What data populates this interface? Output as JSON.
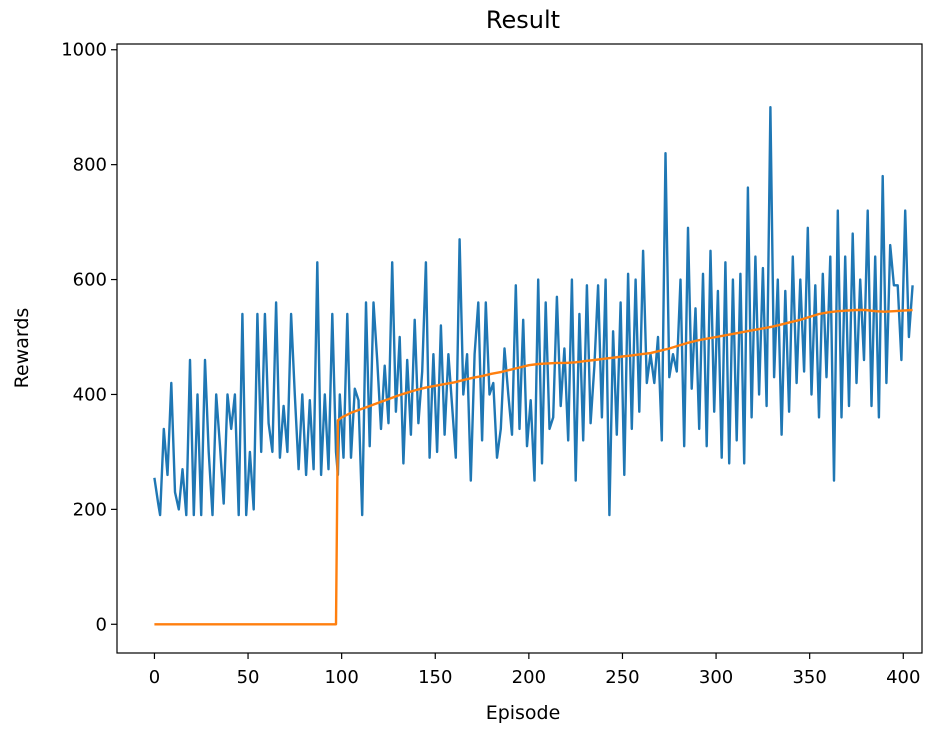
{
  "chart_data": {
    "type": "line",
    "title": "Result",
    "xlabel": "Episode",
    "ylabel": "Rewards",
    "xlim": [
      -20,
      410
    ],
    "ylim": [
      -50,
      1010
    ],
    "xticks": [
      0,
      50,
      100,
      150,
      200,
      250,
      300,
      350,
      400
    ],
    "yticks": [
      0,
      200,
      400,
      600,
      800,
      1000
    ],
    "grid": false,
    "legend": "none",
    "series": [
      {
        "color": "#1f77b4",
        "x": [
          0,
          2,
          3,
          5,
          7,
          9,
          11,
          13,
          15,
          17,
          19,
          21,
          23,
          25,
          27,
          29,
          31,
          33,
          35,
          37,
          39,
          41,
          43,
          45,
          47,
          49,
          51,
          53,
          55,
          57,
          59,
          61,
          63,
          65,
          67,
          69,
          71,
          73,
          75,
          77,
          79,
          81,
          83,
          85,
          87,
          89,
          91,
          93,
          95,
          97,
          98,
          99,
          101,
          103,
          105,
          107,
          109,
          111,
          113,
          115,
          117,
          119,
          121,
          123,
          125,
          127,
          129,
          131,
          133,
          135,
          137,
          139,
          141,
          143,
          145,
          147,
          149,
          151,
          153,
          155,
          157,
          159,
          161,
          163,
          165,
          167,
          169,
          171,
          173,
          175,
          177,
          179,
          181,
          183,
          185,
          187,
          189,
          191,
          193,
          195,
          197,
          199,
          201,
          203,
          205,
          207,
          209,
          211,
          213,
          215,
          217,
          219,
          221,
          223,
          225,
          227,
          229,
          231,
          233,
          235,
          237,
          239,
          241,
          243,
          245,
          247,
          249,
          251,
          253,
          255,
          257,
          259,
          261,
          263,
          265,
          267,
          269,
          271,
          273,
          275,
          277,
          279,
          281,
          283,
          285,
          287,
          289,
          291,
          293,
          295,
          297,
          299,
          301,
          303,
          305,
          307,
          309,
          311,
          313,
          315,
          317,
          319,
          321,
          323,
          325,
          327,
          329,
          331,
          333,
          335,
          337,
          339,
          341,
          343,
          345,
          347,
          349,
          351,
          353,
          355,
          357,
          359,
          361,
          363,
          365,
          367,
          369,
          371,
          373,
          375,
          377,
          379,
          381,
          383,
          385,
          387,
          389,
          391,
          393,
          395,
          397,
          399,
          401,
          403,
          405
        ],
        "values": [
          255,
          210,
          190,
          340,
          260,
          420,
          230,
          200,
          270,
          190,
          460,
          190,
          400,
          190,
          460,
          300,
          190,
          400,
          310,
          210,
          400,
          340,
          400,
          190,
          540,
          190,
          300,
          200,
          540,
          300,
          540,
          350,
          300,
          560,
          290,
          380,
          300,
          540,
          400,
          270,
          400,
          260,
          390,
          270,
          630,
          260,
          400,
          270,
          540,
          300,
          260,
          400,
          290,
          540,
          290,
          410,
          390,
          190,
          560,
          310,
          560,
          460,
          340,
          450,
          350,
          630,
          370,
          500,
          280,
          460,
          330,
          530,
          350,
          440,
          630,
          290,
          470,
          300,
          520,
          330,
          470,
          380,
          290,
          670,
          400,
          470,
          250,
          470,
          560,
          320,
          560,
          400,
          420,
          290,
          340,
          480,
          400,
          330,
          590,
          340,
          530,
          310,
          390,
          250,
          600,
          280,
          560,
          340,
          360,
          570,
          380,
          480,
          320,
          600,
          250,
          540,
          320,
          590,
          350,
          450,
          590,
          360,
          600,
          190,
          510,
          330,
          560,
          260,
          610,
          340,
          600,
          370,
          650,
          420,
          470,
          420,
          500,
          320,
          820,
          430,
          470,
          440,
          600,
          310,
          690,
          410,
          550,
          340,
          610,
          310,
          650,
          370,
          580,
          290,
          630,
          280,
          600,
          320,
          610,
          280,
          760,
          360,
          640,
          400,
          620,
          380,
          900,
          430,
          600,
          330,
          580,
          370,
          640,
          420,
          600,
          440,
          690,
          400,
          590,
          360,
          610,
          430,
          640,
          250,
          720,
          360,
          640,
          380,
          680,
          420,
          600,
          460,
          720,
          380,
          640,
          360,
          780,
          420,
          660,
          590,
          590,
          460,
          720,
          500,
          590
        ]
      },
      {
        "color": "#ff7f0e",
        "x": [
          0,
          25,
          50,
          75,
          97,
          98,
          100,
          105,
          110,
          115,
          120,
          125,
          130,
          135,
          140,
          145,
          150,
          155,
          160,
          165,
          170,
          175,
          180,
          185,
          190,
          195,
          200,
          205,
          210,
          215,
          220,
          225,
          230,
          235,
          240,
          245,
          250,
          255,
          260,
          265,
          270,
          275,
          280,
          285,
          290,
          295,
          300,
          305,
          310,
          315,
          320,
          325,
          330,
          335,
          340,
          345,
          350,
          355,
          360,
          365,
          370,
          375,
          380,
          385,
          390,
          395,
          400,
          405
        ],
        "values": [
          0,
          0,
          0,
          0,
          0,
          355,
          360,
          368,
          374,
          380,
          386,
          392,
          398,
          403,
          408,
          412,
          415,
          418,
          421,
          425,
          429,
          432,
          436,
          439,
          443,
          447,
          451,
          453,
          454,
          455,
          455,
          456,
          458,
          460,
          462,
          464,
          466,
          468,
          470,
          472,
          476,
          480,
          485,
          490,
          494,
          497,
          500,
          503,
          506,
          509,
          512,
          515,
          518,
          522,
          526,
          530,
          535,
          540,
          543,
          545,
          546,
          547,
          547,
          545,
          544,
          545,
          546,
          547
        ]
      }
    ]
  }
}
